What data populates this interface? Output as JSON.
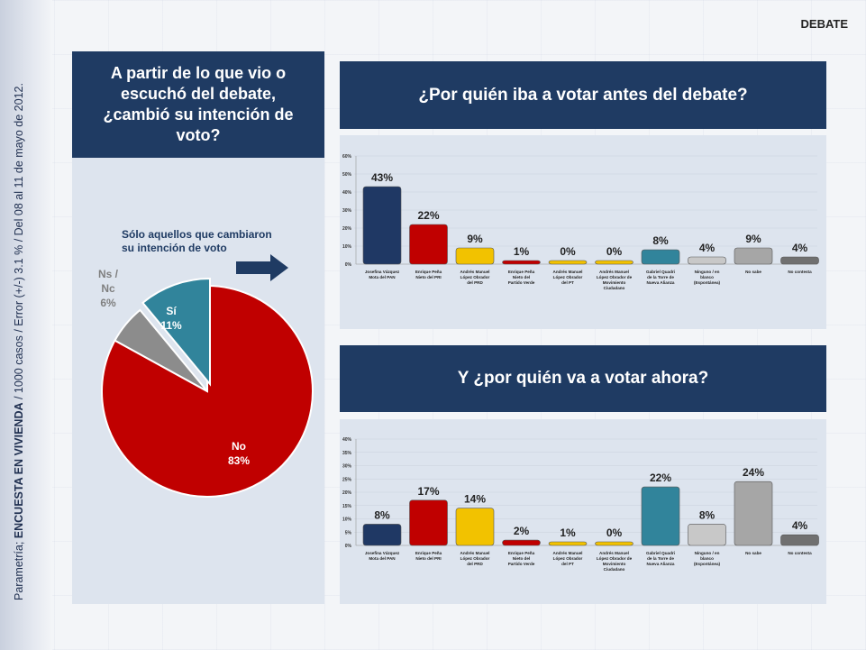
{
  "page": {
    "section": "DEBATE",
    "source_note_prefix": "Parametría; ",
    "source_note_bold": "ENCUESTA EN VIVIENDA",
    "source_note_rest": " / 1000 casos / Error (+/-) 3.1 % / Del 08 al 11 de mayo de 2012."
  },
  "left": {
    "title": "A partir de lo que vio o escuchó del debate, ¿cambió su intención de voto?",
    "note": "Sólo aquellos que cambiaron su intención de voto"
  },
  "chart_data": [
    {
      "type": "pie",
      "title": "A partir de lo que vio o escuchó del debate, ¿cambió su intención de voto?",
      "labels": [
        "No",
        "Ns / Nc",
        "Sí"
      ],
      "values": [
        83,
        6,
        11
      ],
      "value_labels": [
        "83%",
        "6%",
        "11%"
      ],
      "colors": [
        "#c00000",
        "#8c8c8c",
        "#31849b"
      ]
    },
    {
      "type": "bar",
      "title": "¿Por quién iba a votar antes del debate?",
      "categories": [
        "Josefina Vázquez Mota del PAN",
        "Enrique Peña Nieto del PRI",
        "Andrés Manuel López Obrador del PRD",
        "Enrique Peña Nieto del Partido Verde",
        "Andrés Manuel López Obrador del PT",
        "Andrés Manuel López Obrador de Movimiento Ciudadano",
        "Gabriel Quadri de la Torre de Nueva Alianza",
        "Ninguno / en blanco (Espontánea)",
        "No sabe",
        "No contesta"
      ],
      "values": [
        43,
        22,
        9,
        1,
        0,
        0,
        8,
        4,
        9,
        4
      ],
      "ylim": [
        0,
        60
      ],
      "yticks": [
        "0%",
        "10%",
        "20%",
        "30%",
        "40%",
        "50%",
        "60%"
      ],
      "colors": [
        "#1f3864",
        "#c00000",
        "#f2c200",
        "#c00000",
        "#f2c200",
        "#f2c200",
        "#31849b",
        "#c8c8c8",
        "#a6a6a6",
        "#707070"
      ]
    },
    {
      "type": "bar",
      "title": "Y ¿por quién va a votar ahora?",
      "categories": [
        "Josefina Vázquez Mota del PAN",
        "Enrique Peña Nieto del PRI",
        "Andrés Manuel López Obrador del PRD",
        "Enrique Peña Nieto del Partido Verde",
        "Andrés Manuel López Obrador del PT",
        "Andrés Manuel López Obrador de Movimiento Ciudadano",
        "Gabriel Quadri de la Torre de Nueva Alianza",
        "Ninguno / en blanco (Espontánea)",
        "No sabe",
        "No contesta"
      ],
      "values": [
        8,
        17,
        14,
        2,
        1,
        0,
        22,
        8,
        24,
        4
      ],
      "ylim": [
        0,
        40
      ],
      "yticks": [
        "0%",
        "5%",
        "10%",
        "15%",
        "20%",
        "25%",
        "30%",
        "35%",
        "40%"
      ],
      "colors": [
        "#1f3864",
        "#c00000",
        "#f2c200",
        "#c00000",
        "#f2c200",
        "#f2c200",
        "#31849b",
        "#c8c8c8",
        "#a6a6a6",
        "#707070"
      ]
    }
  ]
}
